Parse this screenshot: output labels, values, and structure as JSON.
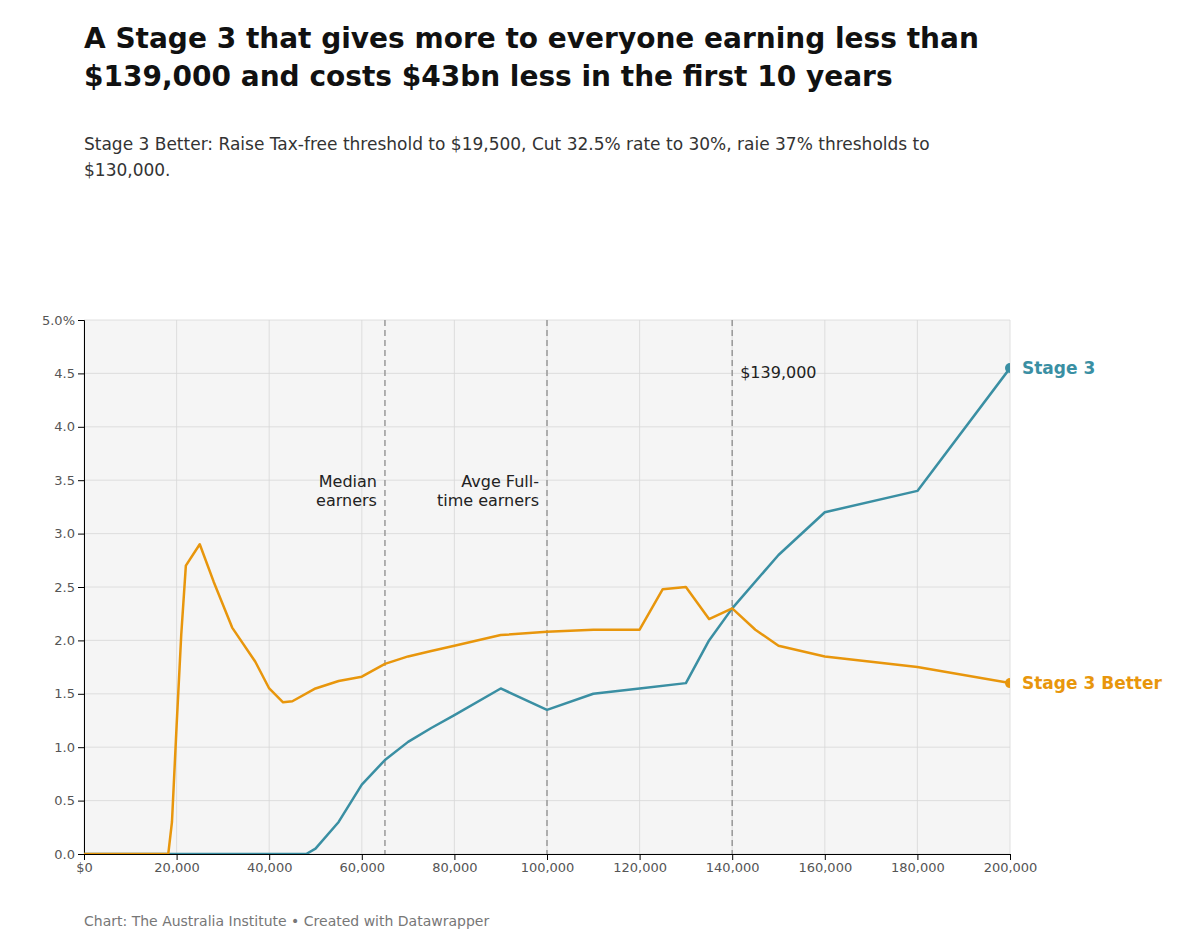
{
  "chart_data": {
    "type": "line",
    "title": "A Stage 3 that gives more to everyone earning less than\n$139,000 and costs $43bn less in the first 10 years",
    "subtitle": "Stage 3 Better: Raise Tax-free threshold to $19,500, Cut 32.5% rate to 30%, raie 37% thresholds to\n$130,000.",
    "footer": "Chart: The Australia Institute • Created with Datawrapper",
    "xlim": [
      0,
      200000
    ],
    "ylim": [
      0,
      5.0
    ],
    "xticks": [
      {
        "value": 0,
        "label": "$0"
      },
      {
        "value": 20000,
        "label": "20,000"
      },
      {
        "value": 40000,
        "label": "40,000"
      },
      {
        "value": 60000,
        "label": "60,000"
      },
      {
        "value": 80000,
        "label": "80,000"
      },
      {
        "value": 100000,
        "label": "100,000"
      },
      {
        "value": 120000,
        "label": "120,000"
      },
      {
        "value": 140000,
        "label": "140,000"
      },
      {
        "value": 160000,
        "label": "160,000"
      },
      {
        "value": 180000,
        "label": "180,000"
      },
      {
        "value": 200000,
        "label": "200,000"
      }
    ],
    "yticks": [
      {
        "value": 0.0,
        "label": "0.0"
      },
      {
        "value": 0.5,
        "label": "0.5"
      },
      {
        "value": 1.0,
        "label": "1.0"
      },
      {
        "value": 1.5,
        "label": "1.5"
      },
      {
        "value": 2.0,
        "label": "2.0"
      },
      {
        "value": 2.5,
        "label": "2.5"
      },
      {
        "value": 3.0,
        "label": "3.0"
      },
      {
        "value": 3.5,
        "label": "3.5"
      },
      {
        "value": 4.0,
        "label": "4.0"
      },
      {
        "value": 4.5,
        "label": "4.5"
      },
      {
        "value": 5.0,
        "label": "5.0%"
      }
    ],
    "grid": true,
    "vlines": [
      {
        "value": 65000,
        "label": "Median\nearners"
      },
      {
        "value": 100000,
        "label": "Avge Full-\ntime earners"
      },
      {
        "value": 140000,
        "label": "$139,000"
      }
    ],
    "series": [
      {
        "name": "Stage 3",
        "color": "#3a8fa3",
        "x": [
          0,
          18200,
          45000,
          48000,
          50000,
          55000,
          60000,
          65000,
          70000,
          75000,
          80000,
          90000,
          100000,
          110000,
          120000,
          130000,
          135000,
          140000,
          150000,
          160000,
          180000,
          200000
        ],
        "values": [
          0.0,
          0.0,
          0.0,
          0.0,
          0.05,
          0.3,
          0.65,
          0.88,
          1.05,
          1.18,
          1.3,
          1.55,
          1.35,
          1.5,
          1.55,
          1.6,
          2.0,
          2.3,
          2.8,
          3.2,
          3.4,
          4.55
        ]
      },
      {
        "name": "Stage 3 Better",
        "color": "#e8960c",
        "x": [
          0,
          500,
          18200,
          19000,
          20000,
          21000,
          22000,
          25000,
          28000,
          32000,
          37000,
          40000,
          43000,
          45000,
          50000,
          55000,
          60000,
          65000,
          70000,
          75000,
          80000,
          90000,
          100000,
          110000,
          120000,
          125000,
          130000,
          135000,
          140000,
          145000,
          150000,
          160000,
          180000,
          200000
        ],
        "values": [
          0.0,
          0.0,
          0.0,
          0.3,
          1.2,
          2.05,
          2.7,
          2.9,
          2.55,
          2.12,
          1.8,
          1.55,
          1.42,
          1.43,
          1.55,
          1.62,
          1.66,
          1.78,
          1.85,
          1.9,
          1.95,
          2.05,
          2.08,
          2.1,
          2.1,
          2.48,
          2.5,
          2.2,
          2.3,
          2.1,
          1.95,
          1.85,
          1.75,
          1.6
        ]
      }
    ]
  }
}
